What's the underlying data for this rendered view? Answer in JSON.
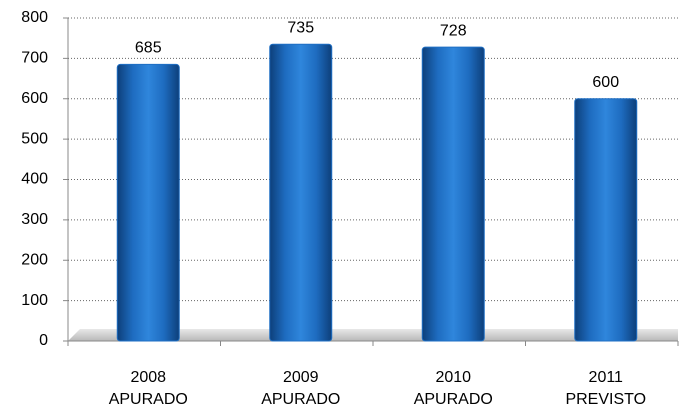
{
  "chart_data": {
    "type": "bar",
    "categories": [
      [
        "2008",
        "APURADO"
      ],
      [
        "2009",
        "APURADO"
      ],
      [
        "2010",
        "APURADO"
      ],
      [
        "2011",
        "PREVISTO"
      ]
    ],
    "values": [
      685,
      735,
      728,
      600
    ],
    "color": "#1f6fc4",
    "ylim": [
      0,
      800
    ],
    "yticks": [
      0,
      100,
      200,
      300,
      400,
      500,
      600,
      700,
      800
    ],
    "grid": true
  }
}
